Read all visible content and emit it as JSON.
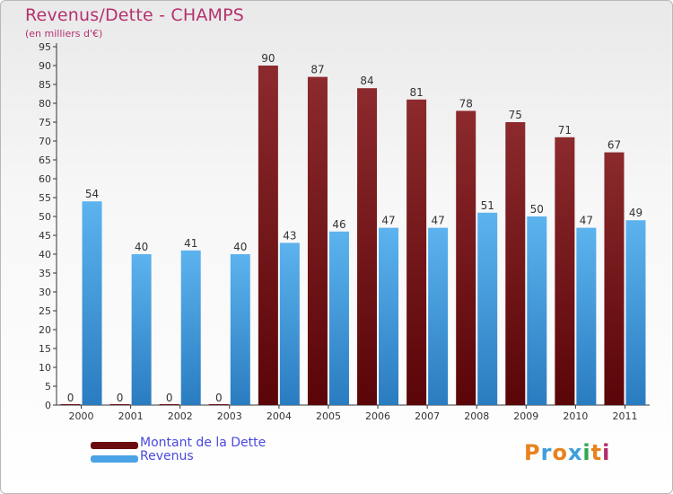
{
  "title": "Revenus/Dette - CHAMPS",
  "subtitle": "(en milliers d'€)",
  "legend": {
    "debt_label": "Montant de la Dette",
    "revenue_label": "Revenus"
  },
  "logo": {
    "text": "Proxiti",
    "letters": [
      "P",
      "r",
      "o",
      "x",
      "i",
      "t",
      "i"
    ],
    "letter_colors": [
      "#e8821e",
      "#3f9edc",
      "#e8821e",
      "#3f9edc",
      "#2fa84f",
      "#e8821e",
      "#b42a6a"
    ]
  },
  "colors": {
    "debt": "#6b0c0f",
    "debt_light": "#8c2a2d",
    "revenue": "#4aa3e6",
    "revenue_dark": "#2c7fc4",
    "accent": "#b5316f"
  },
  "chart_data": {
    "type": "bar",
    "title": "Revenus/Dette - CHAMPS",
    "subtitle": "(en milliers d'€)",
    "categories": [
      "2000",
      "2001",
      "2002",
      "2003",
      "2004",
      "2005",
      "2006",
      "2007",
      "2008",
      "2009",
      "2010",
      "2011"
    ],
    "series": [
      {
        "name": "Montant de la Dette",
        "values": [
          0,
          0,
          0,
          0,
          90,
          87,
          84,
          81,
          78,
          75,
          71,
          67
        ]
      },
      {
        "name": "Revenus",
        "values": [
          54,
          40,
          41,
          40,
          43,
          46,
          47,
          47,
          51,
          50,
          47,
          49
        ]
      }
    ],
    "ylim": [
      0,
      95
    ],
    "yticks": [
      0,
      5,
      10,
      15,
      20,
      25,
      30,
      35,
      40,
      45,
      50,
      55,
      60,
      65,
      70,
      75,
      80,
      85,
      90,
      95
    ],
    "grid": false,
    "legend_position": "bottom-left"
  }
}
